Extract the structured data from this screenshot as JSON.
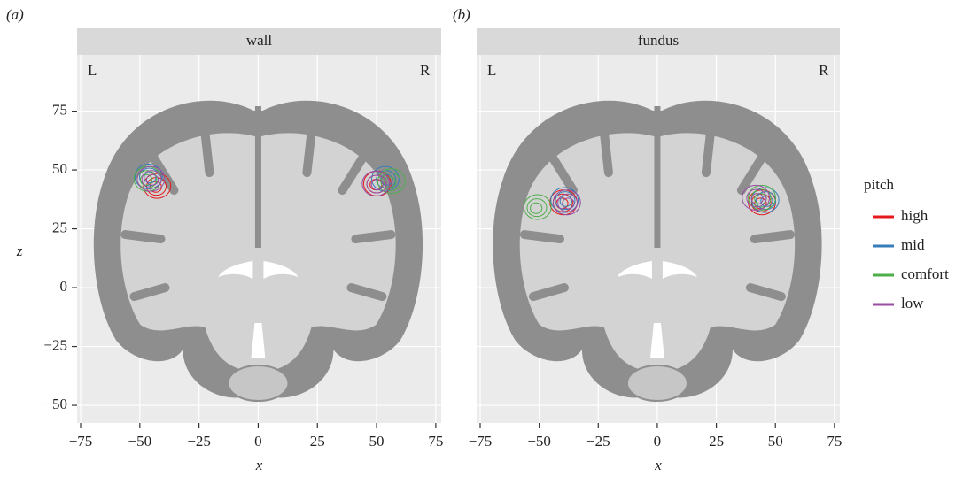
{
  "chart_data": [
    {
      "type": "density2d",
      "panel_label": "(a)",
      "title": "wall",
      "side_labels": [
        "L",
        "R"
      ],
      "xlabel": "x",
      "ylabel": "z",
      "xlim": [
        -76.5,
        77.3
      ],
      "ylim": [
        -57.5,
        98.9
      ],
      "xticks": [
        {
          "value": -75,
          "label": "−75"
        },
        {
          "value": -50,
          "label": "−50"
        },
        {
          "value": -25,
          "label": "−25"
        },
        0,
        25,
        50,
        75
      ],
      "yticks": [
        {
          "value": -50,
          "label": "−50"
        },
        {
          "value": -25,
          "label": "−25"
        },
        0,
        25,
        50,
        75
      ],
      "grid": true,
      "series": [
        {
          "name": "high",
          "color": "#e41a1c",
          "x": [
            -43,
            50
          ],
          "y": [
            43,
            44
          ]
        },
        {
          "name": "mid",
          "color": "#377eb8",
          "x": [
            -46,
            54
          ],
          "y": [
            47,
            46
          ]
        },
        {
          "name": "comfort",
          "color": "#4daf4a",
          "x": [
            -47,
            56
          ],
          "y": [
            46,
            45
          ]
        },
        {
          "name": "low",
          "color": "#984ea3",
          "x": [
            -45,
            50
          ],
          "y": [
            46,
            44
          ]
        }
      ]
    },
    {
      "type": "density2d",
      "panel_label": "(b)",
      "title": "fundus",
      "side_labels": [
        "L",
        "R"
      ],
      "xlabel": "x",
      "legend": "right",
      "legend_title": "pitch",
      "xlim": [
        -76.5,
        77.3
      ],
      "ylim": [
        -57.5,
        98.9
      ],
      "xticks": [
        {
          "value": -75,
          "label": "−75"
        },
        {
          "value": -50,
          "label": "−50"
        },
        {
          "value": -25,
          "label": "−25"
        },
        0,
        25,
        50,
        75
      ],
      "yticks": [
        {
          "value": -50,
          "label": "−50"
        },
        {
          "value": -25,
          "label": "−25"
        },
        0,
        25,
        50,
        75
      ],
      "grid": true,
      "series": [
        {
          "name": "high",
          "color": "#e41a1c",
          "x": [
            -40,
            44
          ],
          "y": [
            36,
            36
          ]
        },
        {
          "name": "mid",
          "color": "#377eb8",
          "x": [
            -39,
            46
          ],
          "y": [
            37,
            37
          ]
        },
        {
          "name": "comfort",
          "color": "#4daf4a",
          "x": [
            -51,
            44
          ],
          "y": [
            34,
            38
          ]
        },
        {
          "name": "low",
          "color": "#984ea3",
          "x": [
            -38,
            42
          ],
          "y": [
            36,
            38
          ]
        }
      ]
    }
  ]
}
